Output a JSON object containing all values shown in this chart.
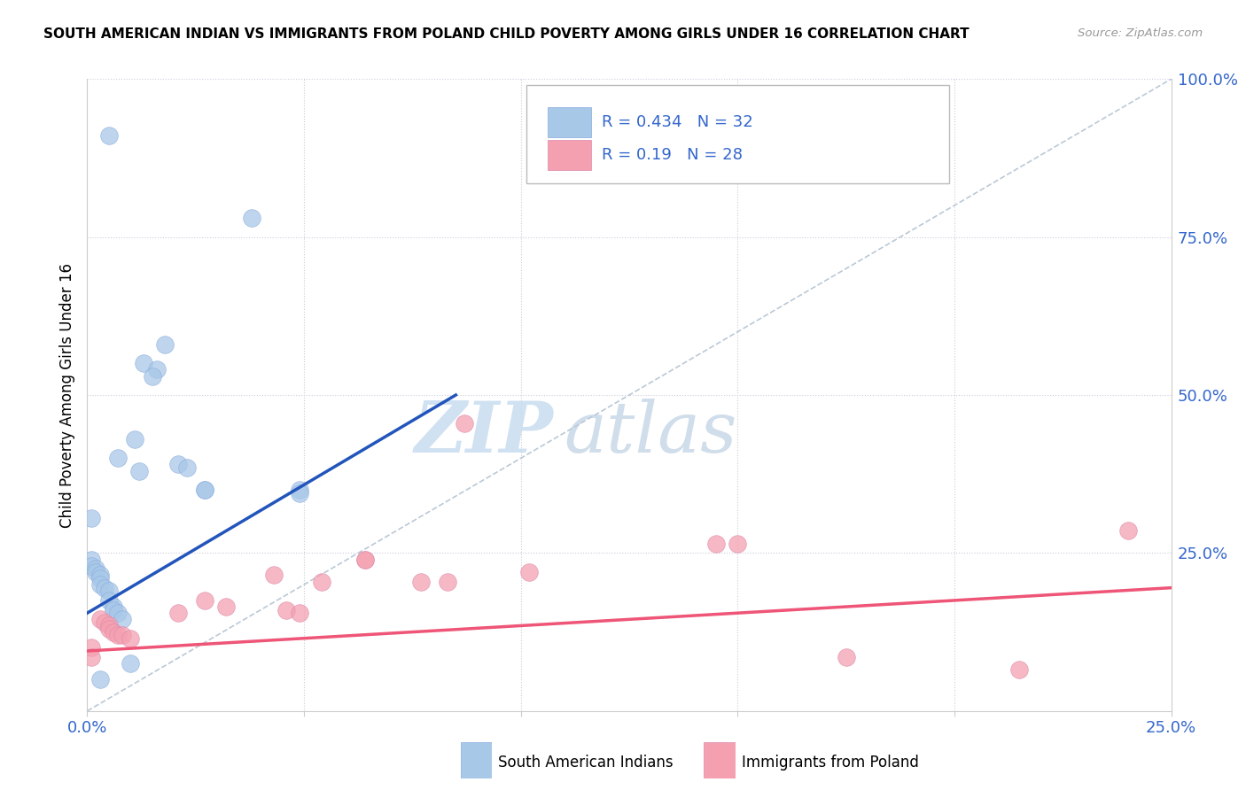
{
  "title": "SOUTH AMERICAN INDIAN VS IMMIGRANTS FROM POLAND CHILD POVERTY AMONG GIRLS UNDER 16 CORRELATION CHART",
  "source": "Source: ZipAtlas.com",
  "ylabel": "Child Poverty Among Girls Under 16",
  "legend1_label": "South American Indians",
  "legend2_label": "Immigrants from Poland",
  "R1": 0.434,
  "N1": 32,
  "R2": 0.19,
  "N2": 28,
  "color_blue": "#A8C8E8",
  "color_pink": "#F4A0B0",
  "color_line_blue": "#2255BB",
  "color_line_pink": "#EE5577",
  "color_diag": "#AABBCC",
  "watermark_zip": "ZIP",
  "watermark_atlas": "atlas",
  "blue_dots": [
    [
      0.005,
      0.91
    ],
    [
      0.038,
      0.78
    ],
    [
      0.018,
      0.58
    ],
    [
      0.013,
      0.55
    ],
    [
      0.016,
      0.54
    ],
    [
      0.015,
      0.53
    ],
    [
      0.011,
      0.43
    ],
    [
      0.007,
      0.4
    ],
    [
      0.021,
      0.39
    ],
    [
      0.023,
      0.385
    ],
    [
      0.012,
      0.38
    ],
    [
      0.027,
      0.35
    ],
    [
      0.027,
      0.35
    ],
    [
      0.049,
      0.35
    ],
    [
      0.049,
      0.345
    ],
    [
      0.001,
      0.305
    ],
    [
      0.001,
      0.24
    ],
    [
      0.001,
      0.23
    ],
    [
      0.002,
      0.225
    ],
    [
      0.002,
      0.22
    ],
    [
      0.003,
      0.215
    ],
    [
      0.003,
      0.21
    ],
    [
      0.003,
      0.2
    ],
    [
      0.004,
      0.195
    ],
    [
      0.005,
      0.19
    ],
    [
      0.005,
      0.175
    ],
    [
      0.006,
      0.165
    ],
    [
      0.006,
      0.16
    ],
    [
      0.007,
      0.155
    ],
    [
      0.008,
      0.145
    ],
    [
      0.01,
      0.075
    ],
    [
      0.003,
      0.05
    ]
  ],
  "pink_dots": [
    [
      0.087,
      0.455
    ],
    [
      0.24,
      0.285
    ],
    [
      0.145,
      0.265
    ],
    [
      0.15,
      0.265
    ],
    [
      0.064,
      0.24
    ],
    [
      0.064,
      0.24
    ],
    [
      0.102,
      0.22
    ],
    [
      0.043,
      0.215
    ],
    [
      0.054,
      0.205
    ],
    [
      0.077,
      0.205
    ],
    [
      0.083,
      0.205
    ],
    [
      0.027,
      0.175
    ],
    [
      0.032,
      0.165
    ],
    [
      0.046,
      0.16
    ],
    [
      0.021,
      0.155
    ],
    [
      0.049,
      0.155
    ],
    [
      0.003,
      0.145
    ],
    [
      0.004,
      0.14
    ],
    [
      0.005,
      0.135
    ],
    [
      0.005,
      0.13
    ],
    [
      0.006,
      0.125
    ],
    [
      0.007,
      0.12
    ],
    [
      0.008,
      0.12
    ],
    [
      0.01,
      0.115
    ],
    [
      0.001,
      0.1
    ],
    [
      0.001,
      0.085
    ],
    [
      0.175,
      0.085
    ],
    [
      0.215,
      0.065
    ]
  ],
  "xlim": [
    0,
    0.25
  ],
  "ylim": [
    0,
    1.0
  ],
  "xgrid_lines": [
    0.05,
    0.1,
    0.15,
    0.2
  ],
  "ygrid_lines": [
    0.25,
    0.5,
    0.75,
    1.0
  ],
  "blue_line": [
    [
      0.0,
      0.155
    ],
    [
      0.085,
      0.5
    ]
  ],
  "pink_line": [
    [
      0.0,
      0.095
    ],
    [
      0.25,
      0.195
    ]
  ]
}
